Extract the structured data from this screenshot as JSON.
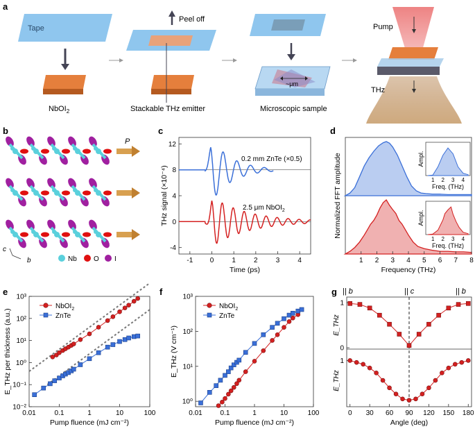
{
  "panels": {
    "a": {
      "letter": "a",
      "tape": "Tape",
      "peel": "Peel off",
      "nbo": "NbOI",
      "nbo_sub": "2",
      "emitter": "Stackable THz emitter",
      "micro": "Microscopic sample",
      "um": "~μm",
      "pump": "Pump",
      "thz": "THz"
    },
    "b": {
      "letter": "b",
      "P": "P",
      "c": "c",
      "b": "b",
      "leg_nb": "Nb",
      "leg_o": "O",
      "leg_i": "I",
      "col_nb": "#5ad0dc",
      "col_o": "#e01010",
      "col_i": "#a020a0"
    },
    "c": {
      "letter": "c",
      "label1": "0.2 mm ZnTe (×0.5)",
      "label2": "2.5 μm NbOI",
      "label2_sub": "2"
    },
    "d": {
      "letter": "d",
      "inset_ylabel": "Ampl.",
      "inset_xlabel": "Freq. (THz)"
    },
    "e": {
      "letter": "e",
      "leg1": "NbOI",
      "leg1_sub": "2",
      "leg2": "ZnTe"
    },
    "f": {
      "letter": "f",
      "leg1": "NbOI",
      "leg1_sub": "2",
      "leg2": "ZnTe"
    },
    "g": {
      "letter": "g",
      "top_b1": "|| b",
      "top_c": "|| c",
      "top_b2": "|| b"
    }
  },
  "colors": {
    "red": "#d42020",
    "blue": "#3a6fd8",
    "tape": "#8fc6ee",
    "crystal": "#e57f3c",
    "beam": "#e04848",
    "thz": "#c9a070",
    "grey": "#777777"
  },
  "chart_data": [
    {
      "panel": "c",
      "type": "line",
      "title": "",
      "xlabel": "Time (ps)",
      "ylabel": "THz signal (×10⁻⁴)",
      "xlim": [
        -1.5,
        4.5
      ],
      "ylim": [
        -5,
        13
      ],
      "xticks": [
        -1,
        0,
        1,
        2,
        3,
        4
      ],
      "yticks": [
        -4,
        0,
        4,
        8,
        12
      ],
      "series": [
        {
          "name": "0.2 mm ZnTe (×0.5)",
          "color": "#3a6fd8",
          "offset": 8,
          "amp": 4.6,
          "t0": 0.05,
          "t1": 2.8,
          "freq": 1.6,
          "decay": 1.1
        },
        {
          "name": "2.5 μm NbOI2",
          "color": "#d42020",
          "offset": 0,
          "amp": 3.6,
          "t0": 0.1,
          "t1": 4.5,
          "freq": 2.0,
          "decay": 0.6
        }
      ]
    },
    {
      "panel": "d",
      "type": "area",
      "xlabel": "Frequency (THz)",
      "ylabel": "Normalized FFT amplitude",
      "xlim": [
        0,
        8
      ],
      "xticks": [
        1,
        2,
        3,
        4,
        5,
        6,
        7,
        8
      ],
      "series": [
        {
          "name": "ZnTe",
          "color": "#3a6fd8",
          "x": [
            0,
            0.3,
            0.6,
            0.9,
            1.2,
            1.5,
            1.8,
            2.1,
            2.4,
            2.6,
            2.8,
            3.0,
            3.3,
            3.6,
            3.9,
            4.2,
            4.5,
            4.8,
            5.1,
            5.5,
            6,
            6.5,
            7,
            7.5,
            8
          ],
          "y": [
            0,
            0.05,
            0.15,
            0.35,
            0.55,
            0.7,
            0.82,
            0.92,
            0.98,
            1,
            0.97,
            0.9,
            0.75,
            0.55,
            0.35,
            0.18,
            0.09,
            0.05,
            0.04,
            0.03,
            0.03,
            0.02,
            0.02,
            0.02,
            0.02
          ]
        },
        {
          "name": "NbOI2",
          "color": "#d42020",
          "x": [
            0,
            0.3,
            0.6,
            0.9,
            1.2,
            1.4,
            1.6,
            1.8,
            2.0,
            2.2,
            2.4,
            2.6,
            2.8,
            3.0,
            3.2,
            3.4,
            3.6,
            3.8,
            4.0,
            4.3,
            4.6,
            5.0,
            5.5,
            6,
            6.5,
            7,
            7.5,
            8
          ],
          "y": [
            0,
            0.05,
            0.12,
            0.22,
            0.35,
            0.45,
            0.55,
            0.62,
            0.72,
            0.85,
            0.95,
            1,
            0.9,
            0.82,
            0.75,
            0.62,
            0.55,
            0.45,
            0.35,
            0.22,
            0.14,
            0.1,
            0.07,
            0.05,
            0.05,
            0.04,
            0.04,
            0.03
          ]
        }
      ],
      "insets": [
        {
          "color": "#3a6fd8",
          "x": [
            0.5,
            1,
            1.5,
            2,
            2.5,
            3,
            3.5,
            4,
            4.5
          ],
          "y": [
            0,
            0.02,
            0.3,
            0.7,
            0.95,
            0.75,
            0.3,
            0.08,
            0.03
          ],
          "xticks": [
            1,
            2,
            3,
            4
          ]
        },
        {
          "color": "#d42020",
          "x": [
            0.5,
            1,
            1.5,
            2,
            2.2,
            2.5,
            2.8,
            3,
            3.3,
            3.6,
            4,
            4.5
          ],
          "y": [
            0,
            0.02,
            0.15,
            0.5,
            0.72,
            0.85,
            0.95,
            0.7,
            0.45,
            0.25,
            0.08,
            0.03
          ],
          "xticks": [
            1,
            2,
            3,
            4
          ]
        }
      ]
    },
    {
      "panel": "e",
      "type": "scatter",
      "xlabel": "Pump fluence (mJ cm⁻²)",
      "ylabel": "E_THz per thickness (a.u.)",
      "xlog": true,
      "ylog": true,
      "xlim": [
        0.01,
        100
      ],
      "ylim": [
        0.01,
        1000
      ],
      "xticks": [
        0.01,
        0.1,
        1,
        10,
        100
      ],
      "xticklabels": [
        "0.01",
        "0.1",
        "1",
        "10",
        "100"
      ],
      "yticks": [
        0.01,
        0.1,
        1,
        10,
        100,
        1000
      ],
      "yticklabels": [
        "10⁻²",
        "10⁻¹",
        "10⁰",
        "10¹",
        "10²",
        "10³"
      ],
      "series": [
        {
          "name": "NbOI2",
          "marker": "circle",
          "color": "#d42020",
          "x": [
            0.06,
            0.08,
            0.1,
            0.13,
            0.16,
            0.2,
            0.25,
            0.3,
            0.5,
            1,
            2,
            4,
            6,
            10,
            15,
            20,
            30,
            40
          ],
          "y": [
            1.8,
            2.2,
            2.8,
            3.5,
            4.2,
            5,
            6,
            7,
            11,
            20,
            40,
            80,
            120,
            200,
            300,
            400,
            600,
            800
          ]
        },
        {
          "name": "ZnTe",
          "marker": "square",
          "color": "#3a6fd8",
          "x": [
            0.015,
            0.03,
            0.05,
            0.07,
            0.1,
            0.13,
            0.16,
            0.2,
            0.25,
            0.3,
            0.5,
            1,
            2,
            4,
            6,
            10,
            15,
            20,
            30,
            40
          ],
          "y": [
            0.035,
            0.07,
            0.11,
            0.15,
            0.2,
            0.25,
            0.3,
            0.35,
            0.42,
            0.5,
            0.8,
            1.5,
            2.8,
            5,
            6.5,
            9,
            11,
            13,
            15,
            16
          ]
        }
      ],
      "reference_lines": [
        {
          "x": [
            0.01,
            100
          ],
          "y": [
            0.4,
            4000
          ]
        },
        {
          "x": [
            0.04,
            100
          ],
          "y": [
            0.1,
            250
          ]
        }
      ]
    },
    {
      "panel": "f",
      "type": "scatter",
      "xlabel": "Pump fluence (mJ cm⁻²)",
      "ylabel": "E_THz (V cm⁻¹)",
      "xlog": true,
      "ylog": true,
      "xlim": [
        0.01,
        100
      ],
      "ylim": [
        0.7,
        1000
      ],
      "xticks": [
        0.01,
        0.1,
        1,
        10,
        100
      ],
      "xticklabels": [
        "0.01",
        "0.1",
        "1",
        "10",
        "100"
      ],
      "yticks": [
        1,
        10,
        100,
        1000
      ],
      "yticklabels": [
        "10⁰",
        "10¹",
        "10²",
        "10³"
      ],
      "series": [
        {
          "name": "NbOI2",
          "marker": "circle",
          "color": "#d42020",
          "x": [
            0.06,
            0.08,
            0.1,
            0.13,
            0.16,
            0.2,
            0.25,
            0.3,
            0.5,
            1,
            2,
            4,
            6,
            10,
            15,
            20,
            30
          ],
          "y": [
            0.75,
            0.95,
            1.2,
            1.6,
            2,
            2.5,
            3.2,
            4,
            7,
            14,
            28,
            55,
            80,
            130,
            190,
            240,
            300
          ]
        },
        {
          "name": "ZnTe",
          "marker": "square",
          "color": "#3a6fd8",
          "x": [
            0.015,
            0.03,
            0.05,
            0.07,
            0.1,
            0.13,
            0.16,
            0.2,
            0.25,
            0.3,
            0.5,
            1,
            2,
            4,
            6,
            10,
            15,
            20,
            30,
            40
          ],
          "y": [
            0.9,
            1.8,
            2.8,
            4,
            5.5,
            7,
            9,
            11,
            13,
            15,
            25,
            45,
            80,
            130,
            170,
            230,
            290,
            330,
            380,
            420
          ]
        }
      ]
    },
    {
      "panel": "g",
      "type": "line",
      "xlabel": "Angle (deg)",
      "xlim": [
        -5,
        185
      ],
      "xticks": [
        0,
        30,
        60,
        90,
        120,
        150,
        180
      ],
      "vline": 90,
      "series": [
        {
          "name": "top",
          "ylabel": "E_THz",
          "marker": "square",
          "color": "#d42020",
          "ylim": [
            0,
            1
          ],
          "yticks": [
            0,
            1
          ],
          "x": [
            0,
            15,
            30,
            45,
            60,
            75,
            90,
            105,
            120,
            135,
            150,
            165,
            180
          ],
          "y": [
            0.98,
            0.96,
            0.88,
            0.72,
            0.52,
            0.3,
            0.05,
            0.3,
            0.52,
            0.72,
            0.88,
            0.96,
            0.98
          ]
        },
        {
          "name": "bottom",
          "ylabel": "E_THz",
          "marker": "circle",
          "color": "#d42020",
          "ylim": [
            0.3,
            1.05
          ],
          "yticks": [
            1
          ],
          "x": [
            0,
            10,
            20,
            30,
            40,
            50,
            60,
            70,
            80,
            90,
            100,
            110,
            120,
            130,
            140,
            150,
            160,
            170,
            180
          ],
          "y": [
            1,
            0.97,
            0.94,
            0.88,
            0.8,
            0.68,
            0.56,
            0.46,
            0.38,
            0.36,
            0.38,
            0.46,
            0.56,
            0.68,
            0.8,
            0.88,
            0.94,
            0.97,
            1
          ]
        }
      ]
    }
  ]
}
